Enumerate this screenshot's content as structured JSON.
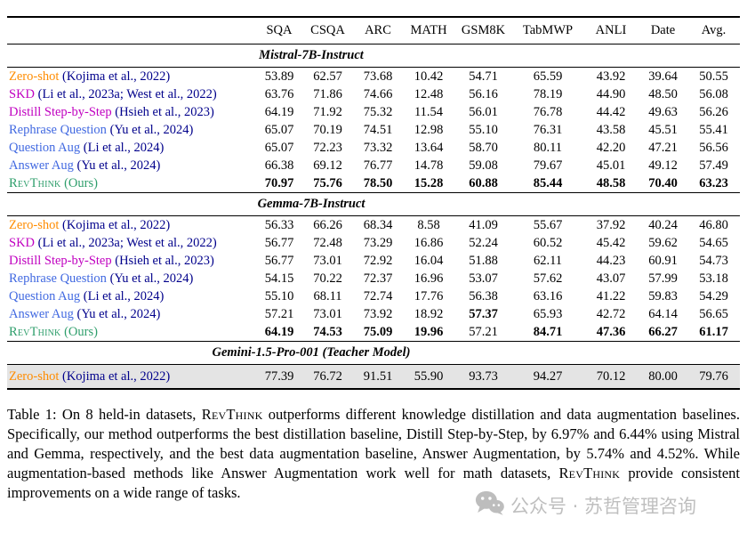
{
  "colors": {
    "orange": "#FF8C00",
    "magenta": "#C000C0",
    "blue": "#4169E1",
    "green": "#2E9E6B",
    "citation": "#00008B",
    "text": "#000000",
    "shaded_row_bg": "#E4E4E4",
    "watermark_gray": "#BFBFBF"
  },
  "table": {
    "columns": [
      "SQA",
      "CSQA",
      "ARC",
      "MATH",
      "GSM8K",
      "TabMWP",
      "ANLI",
      "Date",
      "Avg."
    ],
    "sections": [
      {
        "title": "Mistral-7B-Instruct",
        "rows": [
          {
            "method": "Zero-shot",
            "color_key": "orange",
            "citation": "(Kojima et al., 2022)",
            "citation_color_key": "citation",
            "smallcaps": false,
            "shaded": false,
            "values": [
              "53.89",
              "62.57",
              "73.68",
              "10.42",
              "54.71",
              "65.59",
              "43.92",
              "39.64",
              "50.55"
            ],
            "bold": [
              0,
              0,
              0,
              0,
              0,
              0,
              0,
              0,
              0
            ]
          },
          {
            "method": "SKD",
            "color_key": "magenta",
            "citation": "(Li et al., 2023a; West et al., 2022)",
            "citation_color_key": "citation",
            "smallcaps": false,
            "shaded": false,
            "values": [
              "63.76",
              "71.86",
              "74.66",
              "12.48",
              "56.16",
              "78.19",
              "44.90",
              "48.50",
              "56.08"
            ],
            "bold": [
              0,
              0,
              0,
              0,
              0,
              0,
              0,
              0,
              0
            ]
          },
          {
            "method": "Distill Step-by-Step",
            "color_key": "magenta",
            "citation": "(Hsieh et al., 2023)",
            "citation_color_key": "citation",
            "smallcaps": false,
            "shaded": false,
            "values": [
              "64.19",
              "71.92",
              "75.32",
              "11.54",
              "56.01",
              "76.78",
              "44.42",
              "49.63",
              "56.26"
            ],
            "bold": [
              0,
              0,
              0,
              0,
              0,
              0,
              0,
              0,
              0
            ]
          },
          {
            "method": "Rephrase Question",
            "color_key": "blue",
            "citation": "(Yu et al., 2024)",
            "citation_color_key": "citation",
            "smallcaps": false,
            "shaded": false,
            "values": [
              "65.07",
              "70.19",
              "74.51",
              "12.98",
              "55.10",
              "76.31",
              "43.58",
              "45.51",
              "55.41"
            ],
            "bold": [
              0,
              0,
              0,
              0,
              0,
              0,
              0,
              0,
              0
            ]
          },
          {
            "method": "Question Aug",
            "color_key": "blue",
            "citation": "(Li et al., 2024)",
            "citation_color_key": "citation",
            "smallcaps": false,
            "shaded": false,
            "values": [
              "65.07",
              "72.23",
              "73.32",
              "13.64",
              "58.70",
              "80.11",
              "42.20",
              "47.21",
              "56.56"
            ],
            "bold": [
              0,
              0,
              0,
              0,
              0,
              0,
              0,
              0,
              0
            ]
          },
          {
            "method": "Answer Aug",
            "color_key": "blue",
            "citation": "(Yu et al., 2024)",
            "citation_color_key": "citation",
            "smallcaps": false,
            "shaded": false,
            "values": [
              "66.38",
              "69.12",
              "76.77",
              "14.78",
              "59.08",
              "79.67",
              "45.01",
              "49.12",
              "57.49"
            ],
            "bold": [
              0,
              0,
              0,
              0,
              0,
              0,
              0,
              0,
              0
            ]
          },
          {
            "method": "RevThink",
            "color_key": "green",
            "citation": "(Ours)",
            "citation_color_key": "green",
            "smallcaps": true,
            "shaded": false,
            "values": [
              "70.97",
              "75.76",
              "78.50",
              "15.28",
              "60.88",
              "85.44",
              "48.58",
              "70.40",
              "63.23"
            ],
            "bold": [
              1,
              1,
              1,
              1,
              1,
              1,
              1,
              1,
              1
            ]
          }
        ]
      },
      {
        "title": "Gemma-7B-Instruct",
        "rows": [
          {
            "method": "Zero-shot",
            "color_key": "orange",
            "citation": "(Kojima et al., 2022)",
            "citation_color_key": "citation",
            "smallcaps": false,
            "shaded": false,
            "values": [
              "56.33",
              "66.26",
              "68.34",
              "8.58",
              "41.09",
              "55.67",
              "37.92",
              "40.24",
              "46.80"
            ],
            "bold": [
              0,
              0,
              0,
              0,
              0,
              0,
              0,
              0,
              0
            ]
          },
          {
            "method": "SKD",
            "color_key": "magenta",
            "citation": "(Li et al., 2023a; West et al., 2022)",
            "citation_color_key": "citation",
            "smallcaps": false,
            "shaded": false,
            "values": [
              "56.77",
              "72.48",
              "73.29",
              "16.86",
              "52.24",
              "60.52",
              "45.42",
              "59.62",
              "54.65"
            ],
            "bold": [
              0,
              0,
              0,
              0,
              0,
              0,
              0,
              0,
              0
            ]
          },
          {
            "method": "Distill Step-by-Step",
            "color_key": "magenta",
            "citation": "(Hsieh et al., 2023)",
            "citation_color_key": "citation",
            "smallcaps": false,
            "shaded": false,
            "values": [
              "56.77",
              "73.01",
              "72.92",
              "16.04",
              "51.88",
              "62.11",
              "44.23",
              "60.91",
              "54.73"
            ],
            "bold": [
              0,
              0,
              0,
              0,
              0,
              0,
              0,
              0,
              0
            ]
          },
          {
            "method": "Rephrase Question",
            "color_key": "blue",
            "citation": "(Yu et al., 2024)",
            "citation_color_key": "citation",
            "smallcaps": false,
            "shaded": false,
            "values": [
              "54.15",
              "70.22",
              "72.37",
              "16.96",
              "53.07",
              "57.62",
              "43.07",
              "57.99",
              "53.18"
            ],
            "bold": [
              0,
              0,
              0,
              0,
              0,
              0,
              0,
              0,
              0
            ]
          },
          {
            "method": "Question Aug",
            "color_key": "blue",
            "citation": "(Li et al., 2024)",
            "citation_color_key": "citation",
            "smallcaps": false,
            "shaded": false,
            "values": [
              "55.10",
              "68.11",
              "72.74",
              "17.76",
              "56.38",
              "63.16",
              "41.22",
              "59.83",
              "54.29"
            ],
            "bold": [
              0,
              0,
              0,
              0,
              0,
              0,
              0,
              0,
              0
            ]
          },
          {
            "method": "Answer Aug",
            "color_key": "blue",
            "citation": "(Yu et al., 2024)",
            "citation_color_key": "citation",
            "smallcaps": false,
            "shaded": false,
            "values": [
              "57.21",
              "73.01",
              "73.92",
              "18.92",
              "57.37",
              "65.93",
              "42.72",
              "64.14",
              "56.65"
            ],
            "bold": [
              0,
              0,
              0,
              0,
              1,
              0,
              0,
              0,
              0
            ]
          },
          {
            "method": "RevThink",
            "color_key": "green",
            "citation": "(Ours)",
            "citation_color_key": "green",
            "smallcaps": true,
            "shaded": false,
            "values": [
              "64.19",
              "74.53",
              "75.09",
              "19.96",
              "57.21",
              "84.71",
              "47.36",
              "66.27",
              "61.17"
            ],
            "bold": [
              1,
              1,
              1,
              1,
              0,
              1,
              1,
              1,
              1
            ]
          }
        ]
      },
      {
        "title": "Gemini-1.5-Pro-001 (Teacher Model)",
        "rows": [
          {
            "method": "Zero-shot",
            "color_key": "orange",
            "citation": "(Kojima et al., 2022)",
            "citation_color_key": "citation",
            "smallcaps": false,
            "shaded": true,
            "values": [
              "77.39",
              "76.72",
              "91.51",
              "55.90",
              "93.73",
              "94.27",
              "70.12",
              "80.00",
              "79.76"
            ],
            "bold": [
              0,
              0,
              0,
              0,
              0,
              0,
              0,
              0,
              0
            ]
          }
        ]
      }
    ]
  },
  "caption": {
    "segments": [
      {
        "text": "Table 1: On 8 held-in datasets, ",
        "smallcaps": false
      },
      {
        "text": "RevThink",
        "smallcaps": true
      },
      {
        "text": " outperforms different knowledge distillation and data augmentation baselines. Specifically, our method outperforms the best distillation baseline, Distill Step-by-Step, by 6.97% and 6.44% using Mistral and Gemma, respectively, and the best data augmentation baseline, Answer Augmentation, by 5.74% and 4.52%. While augmentation-based methods like Answer Augmentation work well for math datasets, ",
        "smallcaps": false
      },
      {
        "text": "RevThink",
        "smallcaps": true
      },
      {
        "text": " provide consistent improvements on a wide range of tasks.",
        "smallcaps": false
      }
    ]
  },
  "watermark": {
    "icon": "wechat-icon",
    "text": "公众号 · 苏哲管理咨询"
  }
}
